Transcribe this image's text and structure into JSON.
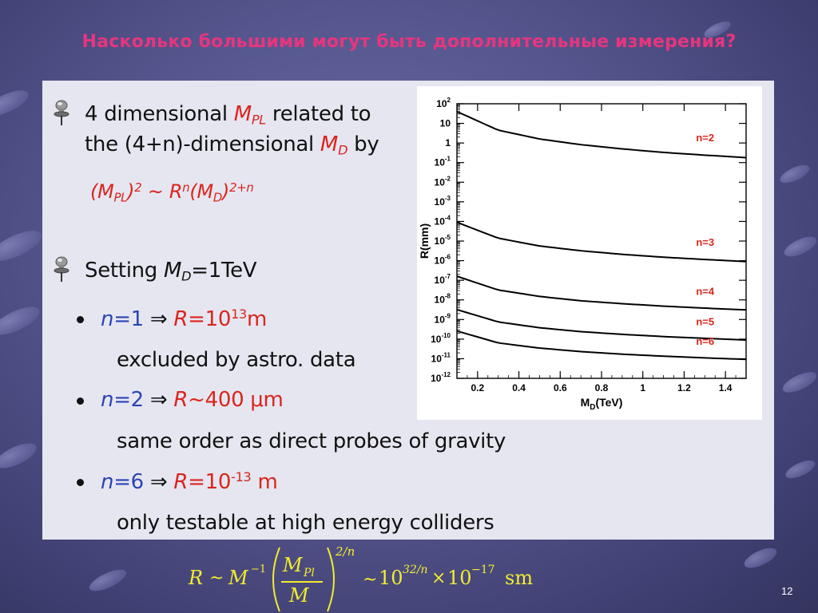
{
  "slide": {
    "title": "Насколько большими могут быть дополнительные измерения?",
    "page_number": "12"
  },
  "bullets": {
    "b1": {
      "a": "4 dimensional ",
      "M": "M",
      "PL": "PL",
      "b": " related to",
      "c": "the (4+n)-dimensional ",
      "M2": "M",
      "D": "D",
      "d": " by"
    },
    "relation": {
      "open": "(M",
      "PL": "PL",
      "mid": ")",
      "sup2": "2",
      "tilde": " ~ R",
      "n": "n",
      "open2": "(M",
      "D": "D",
      "close": ")",
      "exp": "2+n"
    },
    "b2": {
      "a": "Setting ",
      "M": "M",
      "D": "D",
      "b": "=1TeV"
    },
    "sub1": {
      "n": "n",
      "eq": "=1",
      "arrow": " ⇒ ",
      "R": "R",
      "val": "=10",
      "exp": "13",
      "unit": "m",
      "note": "excluded by astro. data"
    },
    "sub2": {
      "n": "n",
      "eq": "=2",
      "arrow": " ⇒ ",
      "R": "R",
      "val": "~400 μm",
      "note": "same order as direct probes of gravity"
    },
    "sub3": {
      "n": "n",
      "eq": "=6",
      "arrow": " ⇒ ",
      "R": "R",
      "val": "=10",
      "exp": "-13",
      "unit": " m",
      "note": "only testable at high energy colliders"
    }
  },
  "formula": {
    "R": "R",
    "tilde1": "~",
    "M": "M",
    "exp_m1": "−1",
    "M_num": "M",
    "Pl": "Pl",
    "M_den": "M",
    "outer_exp": "2/n",
    "tilde2": "~",
    "ten1": "10",
    "exp1": "32/n",
    "times": "×",
    "ten2": "10",
    "exp2": "−17",
    "unit": "sm"
  },
  "chart_data": {
    "type": "line",
    "xlabel": "M_D(TeV)",
    "ylabel": "R(mm)",
    "x_ticks": [
      "0.2",
      "0.4",
      "0.6",
      "0.8",
      "1",
      "1.2",
      "1.4"
    ],
    "x_tick_values": [
      0.2,
      0.4,
      0.6,
      0.8,
      1.0,
      1.2,
      1.4
    ],
    "xlim": [
      0.1,
      1.5
    ],
    "y_scale": "log",
    "ylim": [
      1e-12,
      100
    ],
    "y_ticks": [
      {
        "base": "10",
        "exp": "2",
        "value": 100
      },
      {
        "base": "10",
        "exp": "",
        "value": 10
      },
      {
        "base": "1",
        "exp": "",
        "value": 1
      },
      {
        "base": "10",
        "exp": "-1",
        "value": 0.1
      },
      {
        "base": "10",
        "exp": "-2",
        "value": 0.01
      },
      {
        "base": "10",
        "exp": "-3",
        "value": 0.001
      },
      {
        "base": "10",
        "exp": "-4",
        "value": 0.0001
      },
      {
        "base": "10",
        "exp": "-5",
        "value": 1e-05
      },
      {
        "base": "10",
        "exp": "-6",
        "value": 1e-06
      },
      {
        "base": "10",
        "exp": "-7",
        "value": 1e-07
      },
      {
        "base": "10",
        "exp": "-8",
        "value": 1e-08
      },
      {
        "base": "10",
        "exp": "-9",
        "value": 1e-09
      },
      {
        "base": "10",
        "exp": "-10",
        "value": 1e-10
      },
      {
        "base": "10",
        "exp": "-11",
        "value": 1e-11
      },
      {
        "base": "10",
        "exp": "-12",
        "value": 1e-12
      }
    ],
    "series": [
      {
        "name": "n=2",
        "x": [
          0.1,
          0.3,
          0.5,
          0.7,
          0.9,
          1.1,
          1.3,
          1.5
        ],
        "y": [
          40,
          4.5,
          1.6,
          0.82,
          0.5,
          0.33,
          0.24,
          0.18
        ]
      },
      {
        "name": "n=3",
        "x": [
          0.1,
          0.3,
          0.5,
          0.7,
          0.9,
          1.1,
          1.3,
          1.5
        ],
        "y": [
          9e-05,
          1.4e-05,
          5.6e-06,
          3.2e-06,
          2.1e-06,
          1.5e-06,
          1.15e-06,
          9e-07
        ]
      },
      {
        "name": "n=4",
        "x": [
          0.1,
          0.3,
          0.5,
          0.7,
          0.9,
          1.1,
          1.3,
          1.5
        ],
        "y": [
          1.6e-07,
          3.2e-08,
          1.5e-08,
          9e-09,
          6.4e-09,
          4.8e-09,
          3.8e-09,
          3.1e-09
        ]
      },
      {
        "name": "n=5",
        "x": [
          0.1,
          0.3,
          0.5,
          0.7,
          0.9,
          1.1,
          1.3,
          1.5
        ],
        "y": [
          3.2e-09,
          7.5e-10,
          3.8e-10,
          2.4e-10,
          1.75e-10,
          1.35e-10,
          1.1e-10,
          9e-11
        ]
      },
      {
        "name": "n=6",
        "x": [
          0.1,
          0.3,
          0.5,
          0.7,
          0.9,
          1.1,
          1.3,
          1.5
        ],
        "y": [
          2.6e-10,
          6.4e-11,
          3.5e-11,
          2.3e-11,
          1.7e-11,
          1.35e-11,
          1.1e-11,
          9.3e-12
        ]
      }
    ],
    "series_label_color": "#d9261c",
    "grid": false
  },
  "colors": {
    "title": "#e6357e",
    "accent_red": "#d9261c",
    "accent_blue": "#2c44b4",
    "formula_yellow": "#f2ec2e"
  }
}
